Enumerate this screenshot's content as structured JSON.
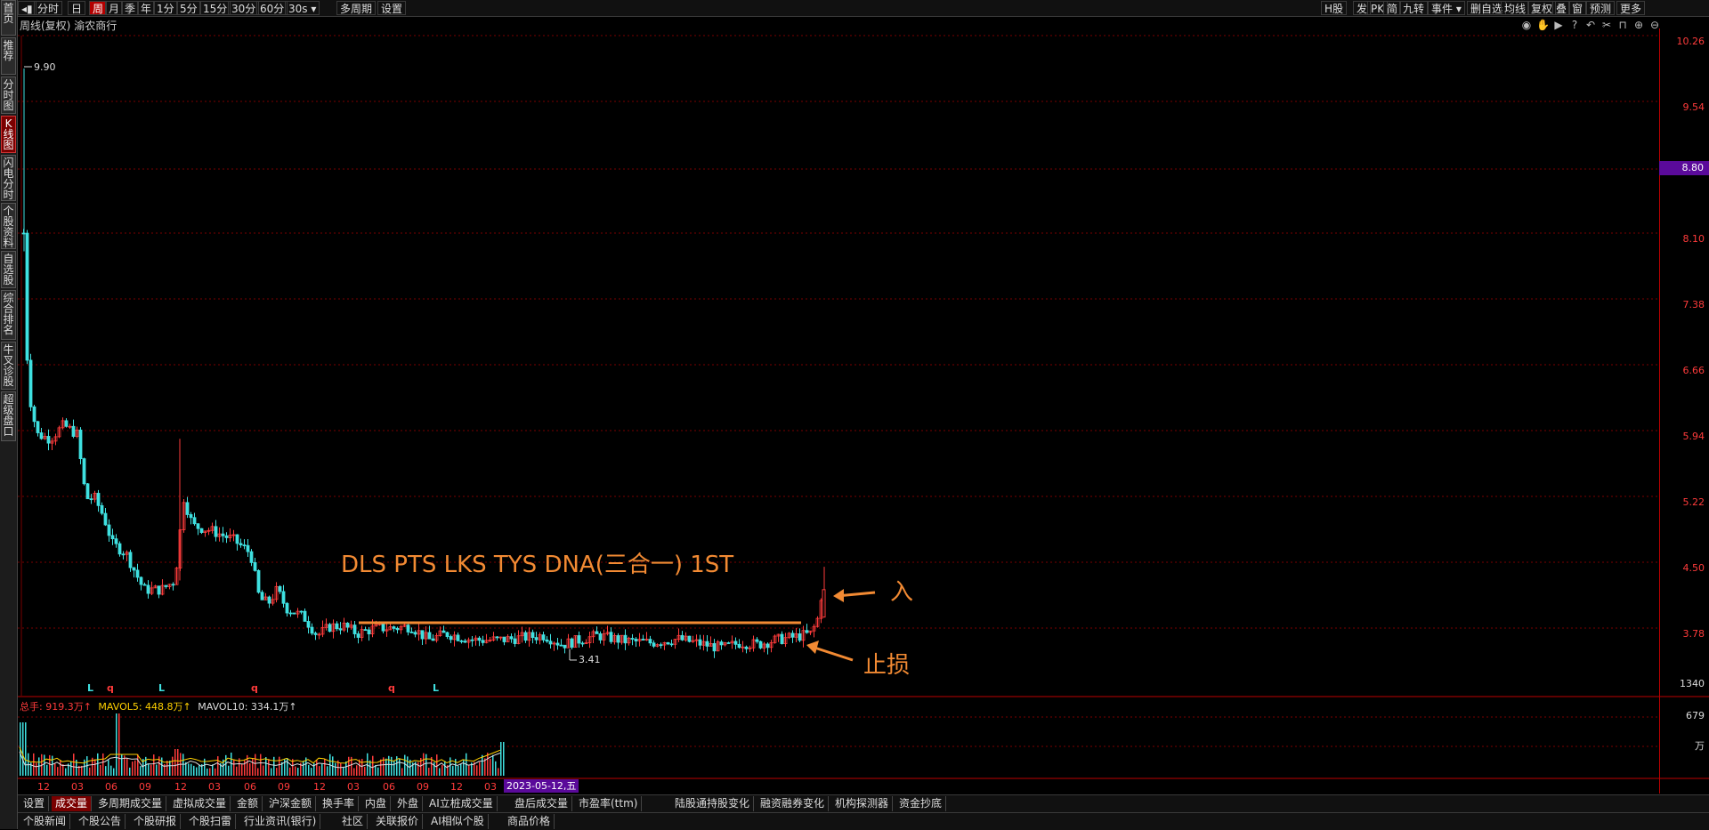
{
  "left_nav": {
    "items": [
      "首页",
      "推荐",
      "分时图",
      "K线图",
      "闪电分时",
      "个股资料",
      "自选股",
      "综合排名",
      "牛叉诊股",
      "超级盘口"
    ],
    "active_index": 3
  },
  "toolbar": {
    "period_buttons": [
      "分时",
      "日",
      "周",
      "月",
      "季",
      "年",
      "1分",
      "5分",
      "15分",
      "30分",
      "60分",
      "30s",
      "多周期",
      "设置"
    ],
    "active_period": "周",
    "right_buttons": [
      "H股",
      "发",
      "PK",
      "简",
      "九转",
      "事件",
      "删自选",
      "均线",
      "复权",
      "叠",
      "窗",
      "预测",
      "更多"
    ]
  },
  "subtitle": {
    "mode": "周线(复权)",
    "stock_name": "渝农商行"
  },
  "price_axis": {
    "labels": [
      "10.26",
      "9.54",
      "8.80",
      "8.10",
      "7.38",
      "6.66",
      "5.94",
      "5.22",
      "4.50",
      "3.78"
    ],
    "current_price": "8.80",
    "accent_color": "#ff3b3b",
    "tag_color": "#5a0a9a"
  },
  "chart_annotations": {
    "high_label": "9.90",
    "low_label": "3.41",
    "title_text": "DLS PTS LKS TYS DNA(三合一) 1ST",
    "entry_label": "入",
    "stop_label": "止损",
    "annotation_color": "#f28a33",
    "signal_markers": [
      "L",
      "q",
      "L",
      "q",
      "q",
      "L"
    ]
  },
  "volume": {
    "header_total_label": "总手: 919.3万↑",
    "mavol5_label": "MAVOL5: 448.8万↑",
    "mavol10_label": "MAVOL10: 334.1万↑",
    "axis_labels": [
      "1340",
      "679",
      "万"
    ]
  },
  "date_axis": {
    "month_labels": [
      "12",
      "03",
      "06",
      "09",
      "12",
      "03",
      "06",
      "09",
      "12",
      "03",
      "06",
      "09",
      "12",
      "03"
    ],
    "current_date": "2023-05-12,五"
  },
  "bottom_tabs_row1": [
    "设置",
    "成交量",
    "多周期成交量",
    "虚拟成交量",
    "金额",
    "沪深金额",
    "换手率",
    "内盘",
    "外盘",
    "AI立桩成交量",
    "盘后成交量",
    "市盈率(ttm)",
    "陆股通持股变化",
    "融资融券变化",
    "机构探测器",
    "资金抄底"
  ],
  "bottom_tabs_row1_active": "成交量",
  "bottom_tabs_row2": [
    "个股新闻",
    "个股公告",
    "个股研报",
    "个股扫雷",
    "行业资讯(银行)",
    "社区",
    "关联报价",
    "AI相似个股",
    "商品价格"
  ],
  "chart_data": {
    "type": "candlestick",
    "y_range": [
      3.4,
      10.3
    ],
    "key_levels": {
      "high": 9.9,
      "low": 3.41,
      "resistance": 3.85,
      "last_close": 4.2
    }
  }
}
